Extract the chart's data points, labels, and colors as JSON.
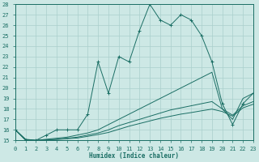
{
  "xlabel": "Humidex (Indice chaleur)",
  "xlim": [
    0,
    23
  ],
  "ylim": [
    15,
    28
  ],
  "yticks": [
    15,
    16,
    17,
    18,
    19,
    20,
    21,
    22,
    23,
    24,
    25,
    26,
    27,
    28
  ],
  "xticks": [
    0,
    1,
    2,
    3,
    4,
    5,
    6,
    7,
    8,
    9,
    10,
    11,
    12,
    13,
    14,
    15,
    16,
    17,
    18,
    19,
    20,
    21,
    22,
    23
  ],
  "bg_color": "#cde8e5",
  "line_color": "#1a6e64",
  "grid_color": "#aacfcc",
  "series": [
    {
      "x": [
        0,
        1,
        2,
        3,
        4,
        5,
        6,
        7,
        8,
        9,
        10,
        11,
        12,
        13,
        14,
        15,
        16,
        17,
        18,
        19,
        20,
        21,
        22,
        23
      ],
      "y": [
        16,
        15,
        15,
        15.5,
        16,
        16.0,
        16.0,
        17.5,
        22.5,
        19.5,
        23.0,
        22.5,
        25.5,
        28.0,
        26.5,
        26.0,
        27.0,
        26.5,
        25.0,
        22.5,
        18.5,
        16.5,
        18.5,
        19.5
      ],
      "marker": true
    },
    {
      "x": [
        0,
        1,
        2,
        3,
        4,
        5,
        6,
        7,
        8,
        9,
        10,
        11,
        12,
        13,
        14,
        15,
        16,
        17,
        18,
        19,
        20,
        21,
        22,
        23
      ],
      "y": [
        16,
        15.1,
        15.0,
        15.1,
        15.2,
        15.3,
        15.5,
        15.7,
        16.0,
        16.5,
        17.0,
        17.5,
        18.0,
        18.5,
        19.0,
        19.5,
        20.0,
        20.5,
        21.0,
        21.5,
        18.0,
        17.0,
        19.0,
        19.5
      ],
      "marker": false
    },
    {
      "x": [
        0,
        1,
        2,
        3,
        4,
        5,
        6,
        7,
        8,
        9,
        10,
        11,
        12,
        13,
        14,
        15,
        16,
        17,
        18,
        19,
        20,
        21,
        22,
        23
      ],
      "y": [
        16,
        15.05,
        15.0,
        15.05,
        15.1,
        15.2,
        15.3,
        15.5,
        15.7,
        16.0,
        16.4,
        16.7,
        17.0,
        17.3,
        17.6,
        17.9,
        18.1,
        18.3,
        18.5,
        18.7,
        18.0,
        17.4,
        18.3,
        18.7
      ],
      "marker": false
    },
    {
      "x": [
        0,
        1,
        2,
        3,
        4,
        5,
        6,
        7,
        8,
        9,
        10,
        11,
        12,
        13,
        14,
        15,
        16,
        17,
        18,
        19,
        20,
        21,
        22,
        23
      ],
      "y": [
        16,
        15.02,
        14.98,
        15.02,
        15.08,
        15.15,
        15.22,
        15.38,
        15.55,
        15.75,
        16.05,
        16.35,
        16.6,
        16.85,
        17.1,
        17.3,
        17.5,
        17.65,
        17.82,
        17.98,
        17.75,
        17.3,
        18.1,
        18.45
      ],
      "marker": false
    }
  ]
}
